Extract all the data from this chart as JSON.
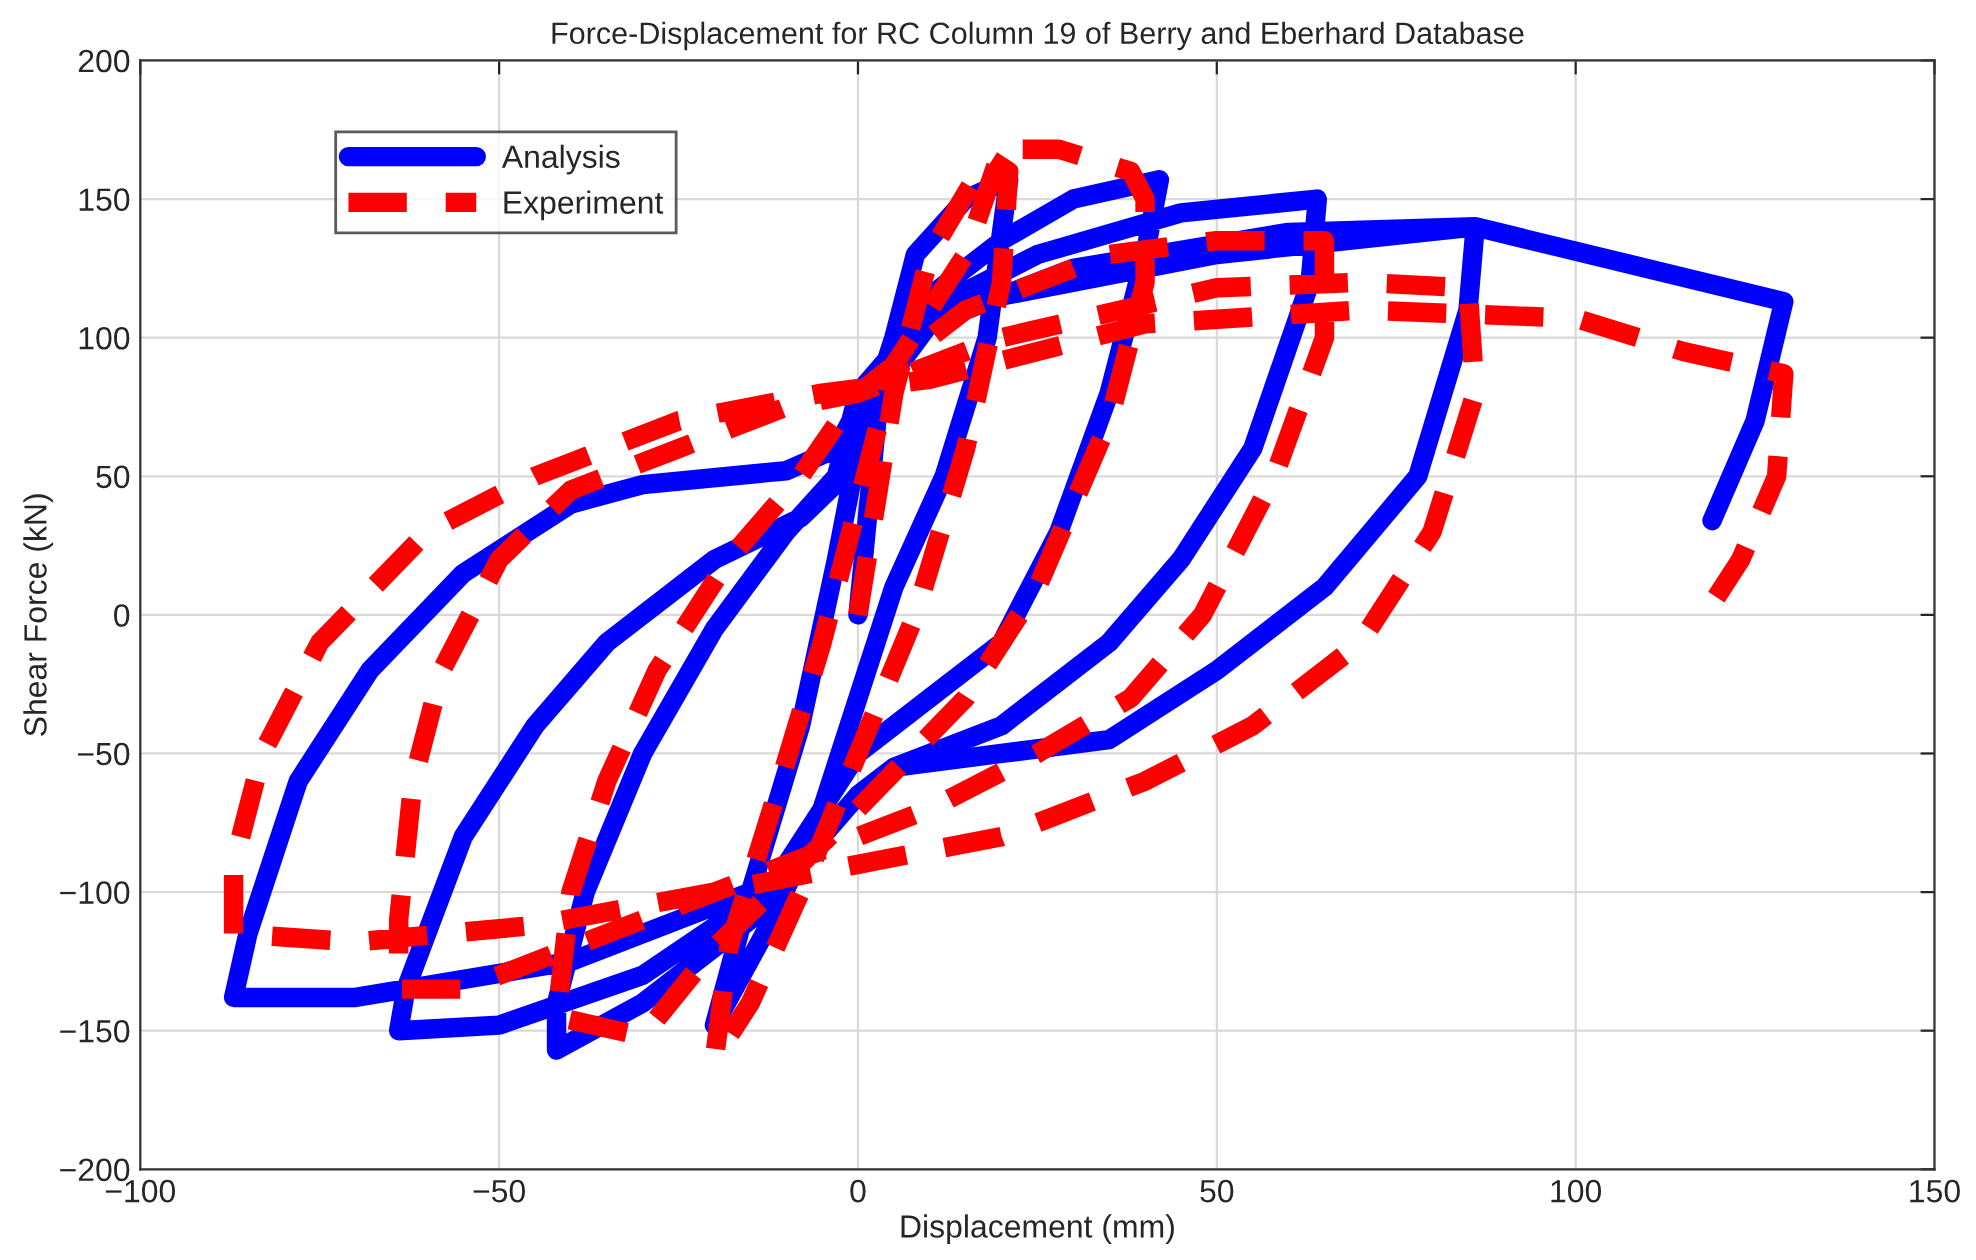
{
  "chart_data": {
    "type": "line",
    "title": "Force-Displacement for RC Column 19 of Berry and Eberhard Database",
    "xlabel": "Displacement (mm)",
    "ylabel": "Shear Force (kN)",
    "xlim": [
      -100,
      150
    ],
    "ylim": [
      -200,
      200
    ],
    "xticks": [
      -100,
      -50,
      0,
      50,
      100,
      150
    ],
    "yticks": [
      -200,
      -150,
      -100,
      -50,
      0,
      50,
      100,
      150,
      200
    ],
    "grid": true,
    "legend": "top left",
    "marker": "none",
    "series": [
      {
        "name": "Analysis",
        "color": "#0000ff",
        "line_style": "solid",
        "x": [
          0,
          3,
          8,
          15,
          21,
          18,
          12,
          5,
          0,
          -5,
          -12,
          -20,
          -15,
          -8,
          -3,
          0,
          5,
          10,
          20,
          30,
          42,
          40,
          35,
          28,
          20,
          10,
          0,
          -5,
          -15,
          -30,
          -42,
          -42,
          -38,
          -30,
          -20,
          -10,
          -3,
          0,
          10,
          25,
          45,
          64,
          63,
          55,
          45,
          35,
          20,
          5,
          0,
          -10,
          -30,
          -50,
          -64,
          -63,
          -55,
          -45,
          -35,
          -20,
          -8,
          -2,
          0,
          10,
          30,
          60,
          86,
          85,
          78,
          65,
          50,
          35,
          20,
          5,
          0,
          -10,
          -40,
          -70,
          -87,
          -85,
          -78,
          -68,
          -55,
          -40,
          -30,
          -10,
          -3,
          0,
          10,
          50,
          86,
          129,
          125,
          119
        ],
        "values": [
          0,
          80,
          130,
          150,
          157,
          100,
          50,
          10,
          -30,
          -70,
          -110,
          -148,
          -100,
          -40,
          20,
          60,
          100,
          115,
          135,
          150,
          157,
          130,
          80,
          30,
          -10,
          -30,
          -50,
          -70,
          -110,
          -140,
          -157,
          -140,
          -100,
          -50,
          -5,
          30,
          50,
          80,
          110,
          130,
          145,
          150,
          120,
          60,
          20,
          -10,
          -40,
          -55,
          -65,
          -95,
          -130,
          -148,
          -150,
          -135,
          -80,
          -40,
          -10,
          20,
          35,
          50,
          70,
          105,
          125,
          138,
          140,
          110,
          50,
          10,
          -20,
          -45,
          -50,
          -55,
          -65,
          -95,
          -125,
          -138,
          -138,
          -115,
          -60,
          -20,
          15,
          40,
          47,
          52,
          60,
          75,
          110,
          130,
          140,
          113,
          70,
          34
        ]
      },
      {
        "name": "Experiment",
        "color": "#ff0000",
        "line_style": "dashed",
        "x": [
          0,
          5,
          10,
          18,
          21,
          20,
          15,
          8,
          0,
          -8,
          -15,
          -20,
          -18,
          -12,
          -5,
          0,
          5,
          15,
          20,
          28,
          38,
          40,
          40,
          35,
          25,
          15,
          0,
          -20,
          -30,
          -42,
          -40,
          -35,
          -28,
          -18,
          -8,
          0,
          15,
          35,
          50,
          65,
          65,
          58,
          48,
          38,
          25,
          10,
          0,
          -20,
          -40,
          -55,
          -64,
          -64,
          -62,
          -58,
          -50,
          -40,
          -25,
          -10,
          0,
          20,
          50,
          70,
          85,
          86,
          80,
          70,
          55,
          40,
          20,
          0,
          -20,
          -45,
          -70,
          -87,
          -87,
          -83,
          -75,
          -60,
          -45,
          -25,
          -5,
          10,
          40,
          70,
          100,
          115,
          129,
          128,
          123,
          118
        ],
        "values": [
          0,
          80,
          130,
          165,
          160,
          120,
          60,
          0,
          -50,
          -100,
          -140,
          -160,
          -120,
          -70,
          -10,
          40,
          90,
          130,
          168,
          168,
          160,
          150,
          120,
          70,
          10,
          -30,
          -70,
          -120,
          -152,
          -145,
          -100,
          -60,
          -20,
          20,
          50,
          80,
          110,
          130,
          135,
          135,
          100,
          50,
          0,
          -30,
          -50,
          -70,
          -80,
          -100,
          -120,
          -135,
          -135,
          -110,
          -60,
          -20,
          20,
          45,
          60,
          75,
          80,
          100,
          118,
          120,
          118,
          80,
          30,
          -10,
          -40,
          -60,
          -80,
          -90,
          -100,
          -112,
          -118,
          -115,
          -90,
          -50,
          -10,
          30,
          50,
          70,
          80,
          85,
          105,
          110,
          107,
          95,
          87,
          50,
          20,
          0
        ]
      }
    ]
  }
}
